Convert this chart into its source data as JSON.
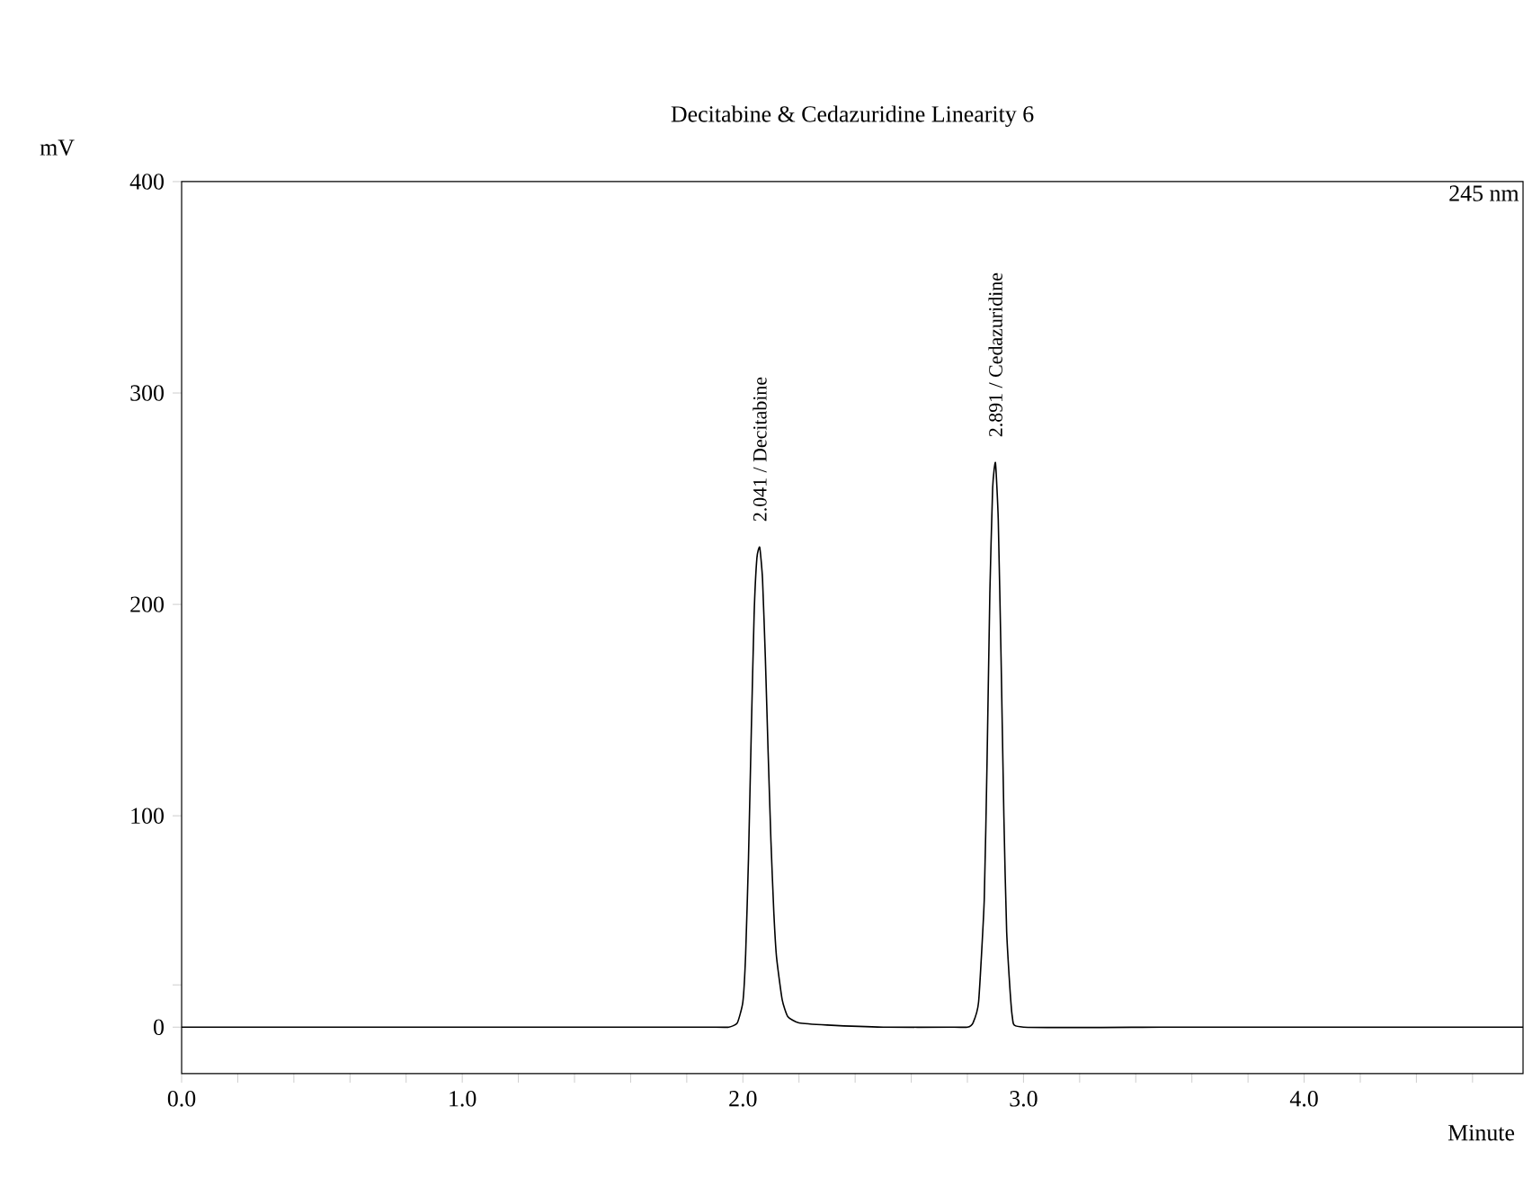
{
  "chart_data": {
    "type": "line",
    "title": "Decitabine & Cedazuridine Linearity 6",
    "xlabel": "Minute",
    "ylabel": "mV",
    "x": [
      0,
      0.3,
      1.0,
      1.5,
      1.9,
      1.95,
      1.98,
      2.0,
      2.01,
      2.02,
      2.03,
      2.04,
      2.05,
      2.06,
      2.07,
      2.08,
      2.09,
      2.1,
      2.11,
      2.12,
      2.14,
      2.16,
      2.2,
      2.3,
      2.5,
      2.75,
      2.8,
      2.82,
      2.84,
      2.86,
      2.87,
      2.88,
      2.89,
      2.9,
      2.91,
      2.92,
      2.93,
      2.94,
      2.96,
      3.0,
      3.5,
      4.0,
      4.78
    ],
    "values": [
      0,
      0,
      0,
      0,
      0,
      0,
      2,
      12,
      35,
      80,
      140,
      195,
      222,
      227,
      212,
      175,
      130,
      88,
      55,
      33,
      13,
      5,
      2,
      1,
      0,
      0,
      0,
      2,
      12,
      60,
      125,
      205,
      255,
      267,
      240,
      175,
      100,
      45,
      5,
      0,
      0,
      0,
      0
    ],
    "color": "#000000",
    "marker": "none",
    "line_style": "solid",
    "grid": false,
    "xlim": [
      0,
      4.78
    ],
    "ylim": [
      -22,
      400
    ],
    "xticks": [
      {
        "value": 0,
        "label": "0.0"
      },
      {
        "value": 0.2,
        "label": null
      },
      {
        "value": 0.4,
        "label": null
      },
      {
        "value": 0.6,
        "label": null
      },
      {
        "value": 0.8,
        "label": null
      },
      {
        "value": 1,
        "label": "1.0"
      },
      {
        "value": 1.2,
        "label": null
      },
      {
        "value": 1.4,
        "label": null
      },
      {
        "value": 1.6,
        "label": null
      },
      {
        "value": 1.8,
        "label": null
      },
      {
        "value": 2,
        "label": "2.0"
      },
      {
        "value": 2.2,
        "label": null
      },
      {
        "value": 2.4,
        "label": null
      },
      {
        "value": 2.6,
        "label": null
      },
      {
        "value": 2.8,
        "label": null
      },
      {
        "value": 3,
        "label": "3.0"
      },
      {
        "value": 3.2,
        "label": null
      },
      {
        "value": 3.4,
        "label": null
      },
      {
        "value": 3.6,
        "label": null
      },
      {
        "value": 3.8,
        "label": null
      },
      {
        "value": 4,
        "label": "4.0"
      },
      {
        "value": 4.2,
        "label": null
      },
      {
        "value": 4.4,
        "label": null
      },
      {
        "value": 4.6,
        "label": null
      }
    ],
    "yticks": [
      0,
      {
        "value": 20,
        "label": null
      },
      100,
      200,
      300,
      400
    ],
    "annotations": [
      "2.041 / Decitabine",
      "2.891 / Cedazuridine",
      "245 nm"
    ]
  }
}
